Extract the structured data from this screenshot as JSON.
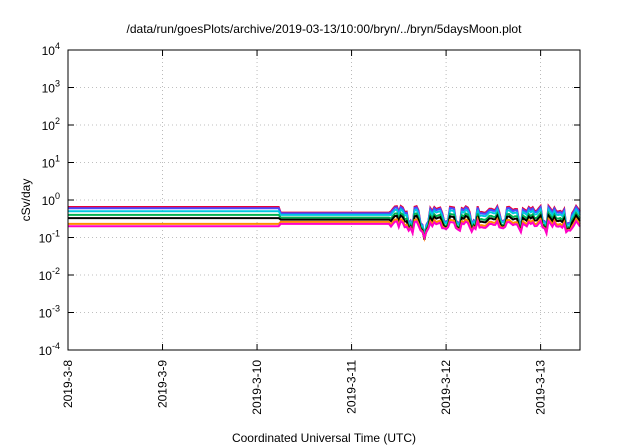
{
  "chart_data": {
    "type": "line",
    "title": "/data/run/goesPlots/archive/2019-03-13/10:00/bryn/../bryn/5daysMoon.plot",
    "xlabel": "Coordinated Universal Time (UTC)",
    "ylabel": "cSv/day",
    "x_range": [
      "2019-03-08",
      "2019-03-13 10:00"
    ],
    "x_ticks": [
      "2019-3-8",
      "2019-3-9",
      "2019-3-10",
      "2019-3-11",
      "2019-3-12",
      "2019-3-13"
    ],
    "y_scale": "log",
    "ylim": [
      0.0001,
      10000
    ],
    "y_ticks": [
      {
        "base": "10",
        "exp": "-4",
        "value": 0.0001
      },
      {
        "base": "10",
        "exp": "-3",
        "value": 0.001
      },
      {
        "base": "10",
        "exp": "-2",
        "value": 0.01
      },
      {
        "base": "10",
        "exp": "-1",
        "value": 0.1
      },
      {
        "base": "10",
        "exp": "0",
        "value": 1
      },
      {
        "base": "10",
        "exp": "1",
        "value": 10
      },
      {
        "base": "10",
        "exp": "2",
        "value": 100
      },
      {
        "base": "10",
        "exp": "3",
        "value": 1000
      },
      {
        "base": "10",
        "exp": "4",
        "value": 10000
      }
    ],
    "grid": true,
    "series": [
      {
        "color": "#e8003c",
        "level_early": 0.65,
        "level_mid": 0.46,
        "level_late": 0.56,
        "dip_factor": 0.95
      },
      {
        "color": "#4a4aff",
        "level_early": 0.6,
        "level_mid": 0.44,
        "level_late": 0.52,
        "dip_factor": 0.9
      },
      {
        "color": "#00c8e0",
        "level_early": 0.5,
        "level_mid": 0.4,
        "level_late": 0.45,
        "dip_factor": 0.85
      },
      {
        "color": "#00b050",
        "level_early": 0.4,
        "level_mid": 0.34,
        "level_late": 0.36,
        "dip_factor": 0.8
      },
      {
        "color": "#000000",
        "level_early": 0.33,
        "level_mid": 0.3,
        "level_late": 0.31,
        "dip_factor": 0.75
      },
      {
        "color": "#ff8c00",
        "level_early": 0.23,
        "level_mid": 0.26,
        "level_late": 0.25,
        "dip_factor": 0.6
      },
      {
        "color": "#ff00c8",
        "level_early": 0.2,
        "level_mid": 0.23,
        "level_late": 0.22,
        "dip_factor": 0.5
      }
    ]
  }
}
